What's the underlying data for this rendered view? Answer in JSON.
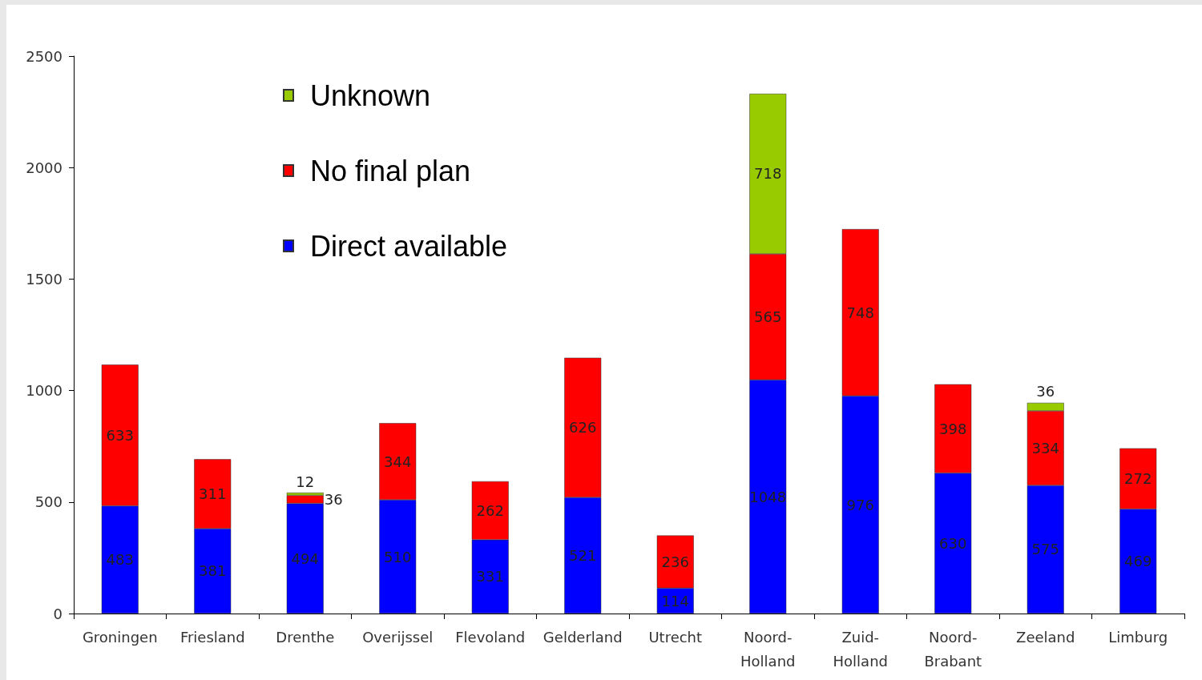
{
  "chart_data": {
    "type": "bar",
    "stacked": true,
    "categories": [
      "Groningen",
      "Friesland",
      "Drenthe",
      "Overijssel",
      "Flevoland",
      "Gelderland",
      "Utrecht",
      "Noord-Holland",
      "Zuid-Holland",
      "Noord-Brabant",
      "Zeeland",
      "Limburg"
    ],
    "series": [
      {
        "name": "Direct available",
        "color": "#0000ff",
        "values": [
          483,
          381,
          494,
          510,
          331,
          521,
          114,
          1048,
          976,
          630,
          575,
          469
        ]
      },
      {
        "name": "No final plan",
        "color": "#ff0000",
        "values": [
          633,
          311,
          36,
          344,
          262,
          626,
          236,
          565,
          748,
          398,
          334,
          272
        ]
      },
      {
        "name": "Unknown",
        "color": "#99cc00",
        "values": [
          null,
          null,
          12,
          null,
          null,
          null,
          null,
          718,
          null,
          null,
          36,
          null
        ]
      }
    ],
    "ylim": [
      0,
      2500
    ],
    "yticks": [
      0,
      500,
      1000,
      1500,
      2000,
      2500
    ],
    "grid": false,
    "legend": "top left",
    "data_labels": true
  }
}
